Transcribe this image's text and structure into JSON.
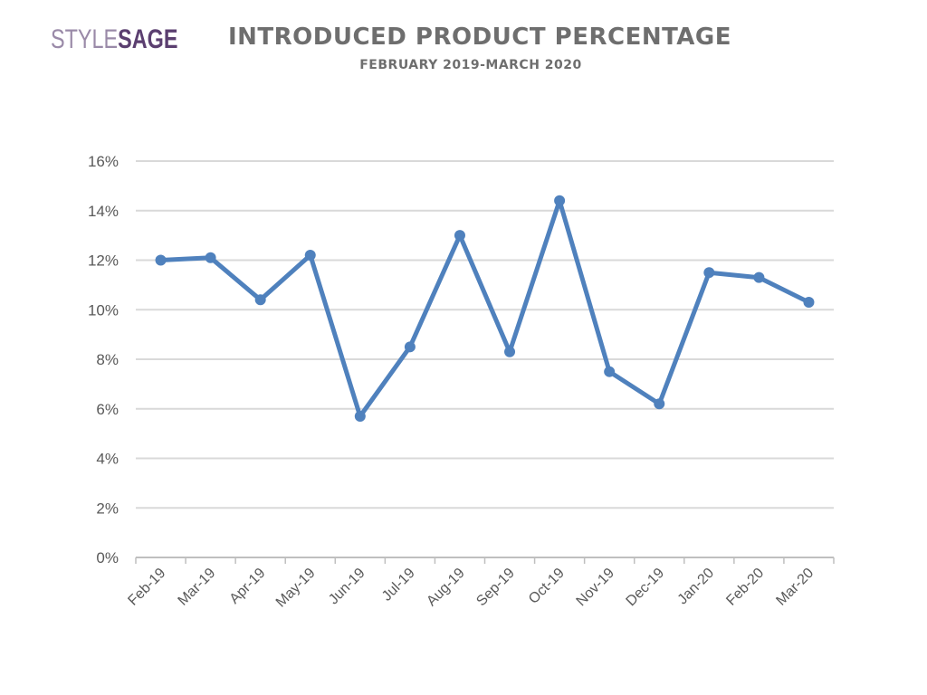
{
  "brand": {
    "part1": "STYLE",
    "part2": "SAGE"
  },
  "chart_data": {
    "type": "line",
    "title": "INTRODUCED PRODUCT PERCENTAGE",
    "subtitle": "FEBRUARY 2019-MARCH 2020",
    "categories": [
      "Feb-19",
      "Mar-19",
      "Apr-19",
      "May-19",
      "Jun-19",
      "Jul-19",
      "Aug-19",
      "Sep-19",
      "Oct-19",
      "Nov-19",
      "Dec-19",
      "Jan-20",
      "Feb-20",
      "Mar-20"
    ],
    "series": [
      {
        "values": [
          12.0,
          12.1,
          10.4,
          12.2,
          5.7,
          8.5,
          13.0,
          8.3,
          14.4,
          7.5,
          6.2,
          11.5,
          11.3,
          10.3
        ]
      }
    ],
    "yticks": [
      "0%",
      "2%",
      "4%",
      "6%",
      "8%",
      "10%",
      "12%",
      "14%",
      "16%"
    ],
    "ylim": [
      0,
      16
    ],
    "grid": true,
    "colors": {
      "line": "#4f81bd",
      "grid": "#d9d9d9",
      "axis": "#bfbfbf",
      "text": "#595959"
    }
  }
}
